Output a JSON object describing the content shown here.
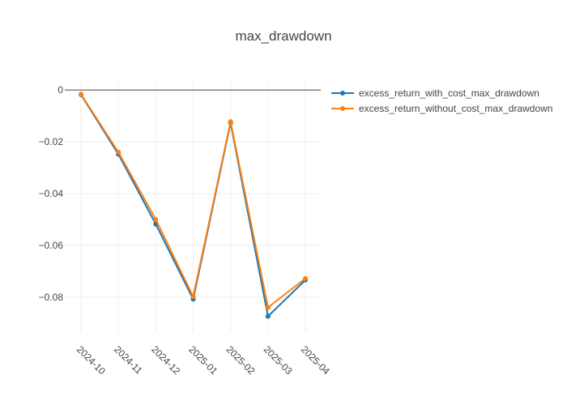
{
  "chart_data": {
    "type": "line",
    "title": "max_drawdown",
    "xlabel": "",
    "ylabel": "",
    "categories": [
      "2024-10",
      "2024-11",
      "2024-12",
      "2025-01",
      "2025-02",
      "2025-03",
      "2025-04"
    ],
    "y_ticks": [
      0,
      -0.02,
      -0.04,
      -0.06,
      -0.08
    ],
    "y_tick_labels": [
      "0",
      "−0.02",
      "−0.04",
      "−0.06",
      "−0.08"
    ],
    "ylim": [
      -0.0935,
      0.0035
    ],
    "grid": true,
    "legend_position": "top-right",
    "series": [
      {
        "name": "excess_return_with_cost_max_drawdown",
        "color": "#1f77b4",
        "values": [
          -0.0018,
          -0.0248,
          -0.0518,
          -0.0808,
          -0.0127,
          -0.0874,
          -0.0734
        ]
      },
      {
        "name": "excess_return_without_cost_max_drawdown",
        "color": "#ff7f0e",
        "values": [
          -0.0016,
          -0.024,
          -0.05,
          -0.0798,
          -0.0122,
          -0.084,
          -0.0728
        ]
      }
    ]
  }
}
